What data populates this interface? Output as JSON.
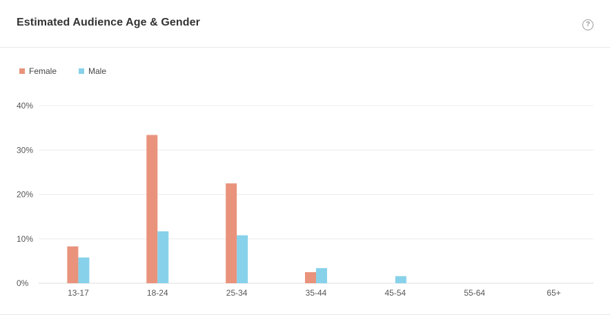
{
  "header": {
    "title": "Estimated Audience Age & Gender",
    "help_icon": "question-circle-icon"
  },
  "colors": {
    "female": "#e9937d",
    "male": "#88d1ea",
    "grid": "#ececec",
    "axis": "#dcdcdc"
  },
  "chart_data": {
    "type": "bar",
    "title": "Estimated Audience Age & Gender",
    "categories": [
      "13-17",
      "18-24",
      "25-34",
      "35-44",
      "45-54",
      "55-64",
      "65+"
    ],
    "series": [
      {
        "name": "Female",
        "values": [
          8.3,
          33.4,
          22.5,
          2.5,
          0,
          0,
          0
        ]
      },
      {
        "name": "Male",
        "values": [
          5.8,
          11.7,
          10.8,
          3.4,
          1.6,
          0,
          0
        ]
      }
    ],
    "yticks": [
      "0%",
      "10%",
      "20%",
      "30%",
      "40%"
    ],
    "ylim": [
      0,
      40
    ],
    "xlabel": "",
    "ylabel": "",
    "grid": true,
    "legend_position": "top-left"
  }
}
